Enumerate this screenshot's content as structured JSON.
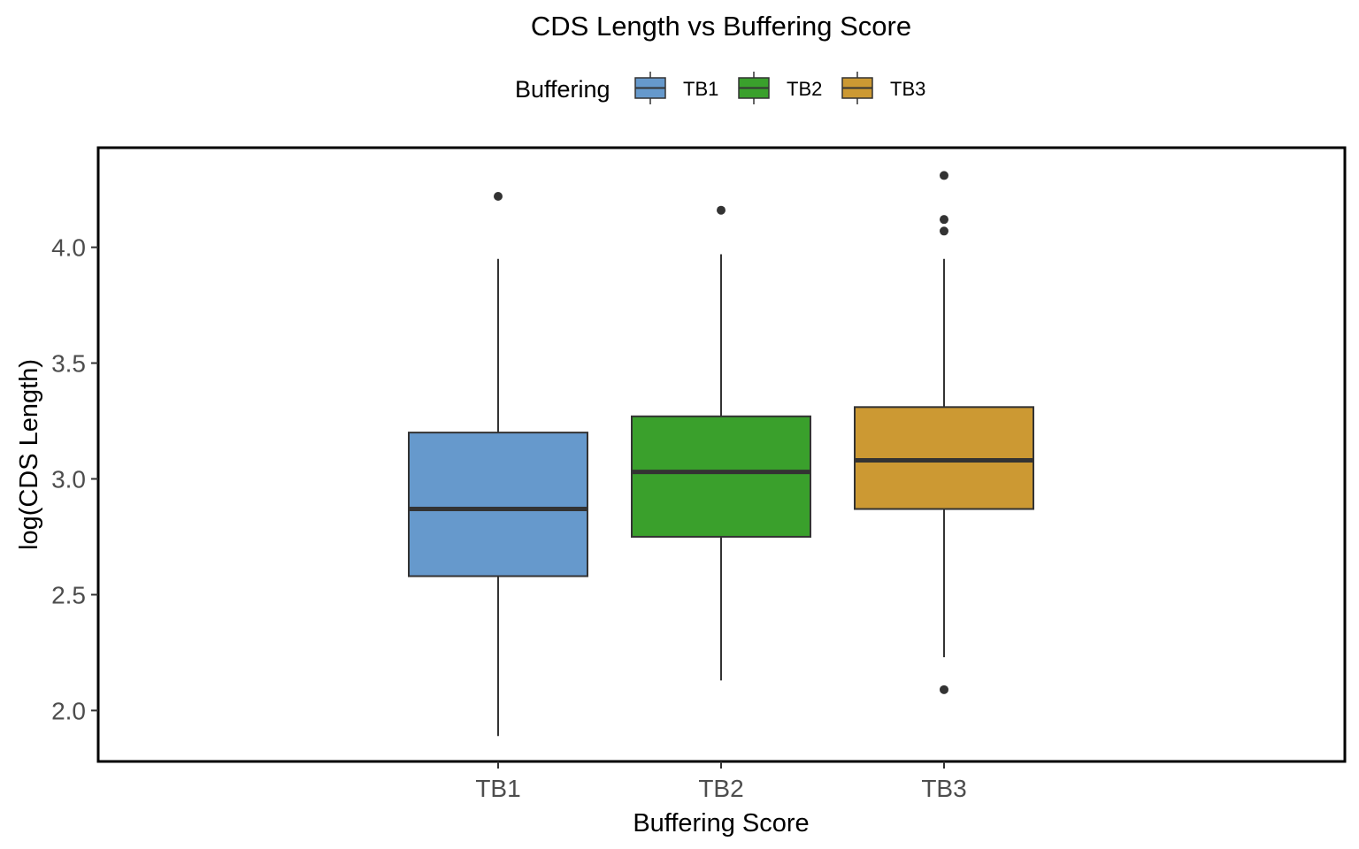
{
  "chart_data": {
    "type": "box",
    "title": "CDS Length vs Buffering Score",
    "xlabel": "Buffering Score",
    "ylabel": "log(CDS Length)",
    "legend": {
      "title": "Buffering",
      "placement": "top",
      "entries": [
        "TB1",
        "TB2",
        "TB3"
      ]
    },
    "categories": [
      "TB1",
      "TB2",
      "TB3"
    ],
    "ylim": [
      1.78,
      4.43
    ],
    "yticks": [
      "2.0",
      "2.5",
      "3.0",
      "3.5",
      "4.0"
    ],
    "grid": false,
    "series": [
      {
        "name": "TB1",
        "color": "#6699CC",
        "whisker_low": 1.89,
        "q1": 2.58,
        "median": 2.87,
        "q3": 3.2,
        "whisker_high": 3.95,
        "outliers": [
          4.22
        ]
      },
      {
        "name": "TB2",
        "color": "#3AA02C",
        "whisker_low": 2.13,
        "q1": 2.75,
        "median": 3.03,
        "q3": 3.27,
        "whisker_high": 3.97,
        "outliers": [
          4.16
        ]
      },
      {
        "name": "TB3",
        "color": "#CC9933",
        "whisker_low": 2.23,
        "q1": 2.87,
        "median": 3.08,
        "q3": 3.31,
        "whisker_high": 3.95,
        "outliers": [
          4.31,
          4.12,
          4.07,
          2.09
        ]
      }
    ]
  }
}
